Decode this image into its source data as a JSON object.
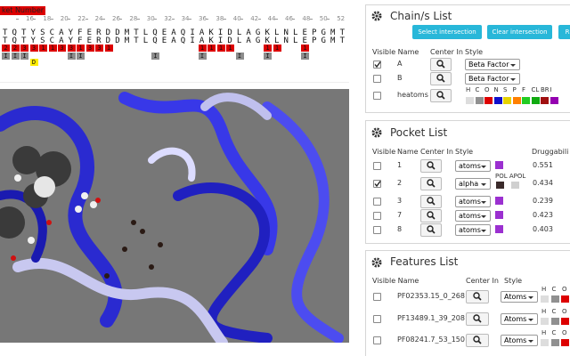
{
  "sequence_panel": {
    "pocket_label": "ket Number",
    "ruler": [
      "16",
      "18",
      "20",
      "22",
      "24",
      "26",
      "28",
      "30",
      "32",
      "34",
      "36",
      "38",
      "40",
      "42",
      "44",
      "46",
      "48",
      "50",
      "52"
    ],
    "chain_rows": [
      "TQTYSCAYFERDDMTLQEAQIAKIDLAGKLNLEPGMT",
      "TQTYSCAYFERDDMTLQEAQIAKIDLAGKLNLEPGMT"
    ],
    "pocket_row": [
      "2",
      "2",
      "3",
      "3",
      "1",
      "1",
      "3",
      "3",
      "1",
      "3",
      "3",
      "1",
      null,
      null,
      null,
      null,
      null,
      null,
      null,
      null,
      null,
      "1",
      "1",
      "1",
      "1",
      null,
      null,
      null,
      "1",
      "1",
      null,
      null,
      "1",
      null,
      null,
      null,
      null
    ],
    "pocket_color": "#dd0000",
    "interaction_row": [
      "I",
      "I",
      "I",
      null,
      null,
      null,
      null,
      "I",
      "I",
      null,
      null,
      null,
      null,
      null,
      null,
      null,
      "I",
      null,
      null,
      null,
      null,
      "I",
      null,
      null,
      null,
      "I",
      null,
      null,
      "I",
      null,
      null,
      null,
      "I",
      null,
      null,
      null,
      null
    ],
    "interaction_color": "#8c8c8c",
    "d_row": [
      null,
      null,
      null,
      "D",
      null,
      null,
      null,
      null,
      null,
      null,
      null,
      null,
      null,
      null,
      null,
      null,
      null,
      null,
      null,
      null,
      null,
      null,
      null,
      null,
      null,
      null,
      null,
      null,
      null,
      null,
      null,
      null,
      null,
      null,
      null,
      null,
      null
    ],
    "d_color": "#ffee00"
  },
  "chain_panel": {
    "title": "Chain/s List",
    "buttons": [
      "Select intersection",
      "Clear intersection",
      "R"
    ],
    "headers": [
      "Visible Name",
      "Center In",
      "Style"
    ],
    "rows": [
      {
        "name": "A",
        "visible": true,
        "style": "Beta Factor"
      },
      {
        "name": "B",
        "visible": false,
        "style": "Beta Factor"
      },
      {
        "name": "heatoms",
        "visible": false
      }
    ],
    "elements": [
      {
        "label": "H",
        "color": "#dddddd"
      },
      {
        "label": "C",
        "color": "#909090"
      },
      {
        "label": "O",
        "color": "#dd0000"
      },
      {
        "label": "N",
        "color": "#1010cc"
      },
      {
        "label": "S",
        "color": "#e6d200"
      },
      {
        "label": "P",
        "color": "#ff8000"
      },
      {
        "label": "F",
        "color": "#22cc22"
      },
      {
        "label": "CL",
        "color": "#11aa11"
      },
      {
        "label": "BR",
        "color": "#a01010"
      },
      {
        "label": "I",
        "color": "#9400b0"
      }
    ]
  },
  "pocket_panel": {
    "title": "Pocket List",
    "headers": [
      "Visible",
      "Name",
      "Center In",
      "Style",
      "Druggabili"
    ],
    "rows": [
      {
        "name": "1",
        "visible": false,
        "style": "atoms",
        "color": "#9b30d0",
        "druggability": "0.551"
      },
      {
        "name": "2",
        "visible": true,
        "style": "alpha",
        "polar_labels": "POL APOL",
        "druggability": "0.434"
      },
      {
        "name": "3",
        "visible": false,
        "style": "atoms",
        "color": "#9b30d0",
        "druggability": "0.239"
      },
      {
        "name": "7",
        "visible": false,
        "style": "atoms",
        "color": "#9b30d0",
        "druggability": "0.423"
      },
      {
        "name": "8",
        "visible": false,
        "style": "atoms",
        "color": "#9b30d0",
        "druggability": "0.403"
      }
    ]
  },
  "features_panel": {
    "title": "Features List",
    "headers": [
      "Visible Name",
      "Center In",
      "Style"
    ],
    "rows": [
      {
        "name": "PF02353.15_0_268",
        "visible": false,
        "style": "Atoms",
        "elements": [
          "H",
          "C",
          "O"
        ]
      },
      {
        "name": "PF13489.1_39_208",
        "visible": false,
        "style": "Atoms",
        "elements": [
          "H",
          "C",
          "O"
        ]
      },
      {
        "name": "PF08241.7_53_150",
        "visible": false,
        "style": "Atoms",
        "elements": [
          "H",
          "C",
          "O"
        ]
      }
    ]
  }
}
